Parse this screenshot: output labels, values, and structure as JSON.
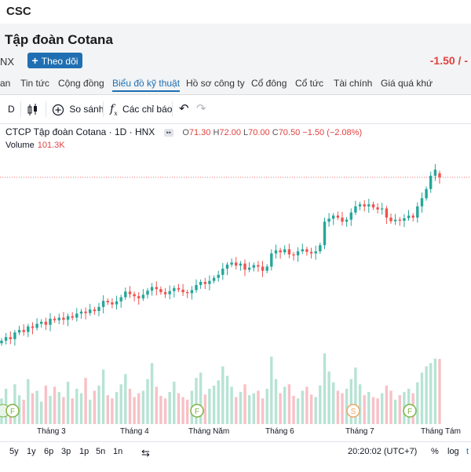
{
  "topbar": {
    "ticker": "CSC"
  },
  "header": {
    "company": "Tập đoàn Cotana",
    "exchange": "NX",
    "follow_label": "Theo dõi",
    "change": "-1.50 / -"
  },
  "tabs": [
    "an",
    "Tin tức",
    "Cộng đồng",
    "Biểu đồ kỹ thuật",
    "Hồ sơ công ty",
    "Cổ đông",
    "Cổ tức",
    "Tài chính",
    "Giá quá khứ"
  ],
  "toolbar": {
    "interval": "D",
    "compare_label": "So sánh",
    "indicators_label": "Các chỉ báo"
  },
  "legend": {
    "symbol": "CTCP Tập đoàn Cotana · 1D · HNX",
    "o_label": "O",
    "o": "71.30",
    "h_label": "H",
    "h": "72.00",
    "l_label": "L",
    "l": "70.00",
    "c_label": "C",
    "c": "70.50",
    "chg": "−1.50 (−2.08%)",
    "volume_label": "Volume",
    "volume": "101.3K"
  },
  "xaxis_labels": [
    "Tháng 3",
    "Tháng 4",
    "Tháng Năm",
    "Tháng 6",
    "Tháng 7",
    "Tháng Tám"
  ],
  "markers": [
    "F",
    "F",
    "S",
    "F"
  ],
  "bottombar": {
    "ranges": [
      "5y",
      "1y",
      "6p",
      "3p",
      "1p",
      "5n",
      "1n"
    ],
    "clock": "20:20:02 (UTC+7)",
    "percent": "%",
    "log": "log",
    "auto": "t"
  },
  "colors": {
    "up": "#26a69a",
    "down": "#ef5350",
    "vol_up": "#b7e3d4",
    "vol_down": "#f7c1c6",
    "accent": "#1f6fb2"
  },
  "chart_data": {
    "type": "candlestick",
    "close": [
      38.5,
      39.2,
      38.8,
      40.1,
      40.6,
      40.2,
      41.3,
      41.0,
      41.8,
      42.2,
      41.6,
      42.8,
      42.5,
      43.0,
      42.6,
      43.3,
      43.0,
      43.8,
      44.2,
      43.9,
      44.6,
      44.3,
      45.1,
      46.3,
      46.0,
      45.6,
      46.2,
      47.0,
      48.1,
      47.6,
      47.2,
      46.8,
      47.5,
      48.3,
      49.0,
      48.6,
      48.0,
      47.6,
      48.2,
      48.8,
      48.5,
      48.0,
      47.8,
      48.4,
      49.4,
      50.0,
      49.6,
      50.2,
      50.8,
      51.4,
      52.6,
      53.4,
      53.8,
      53.2,
      53.6,
      52.4,
      52.8,
      53.3,
      53.0,
      52.2,
      53.0,
      55.6,
      56.2,
      55.8,
      56.4,
      55.4,
      55.2,
      56.0,
      56.4,
      55.9,
      55.6,
      56.0,
      57.2,
      61.8,
      62.4,
      63.0,
      62.6,
      61.8,
      62.2,
      63.6,
      64.8,
      65.2,
      64.8,
      65.2,
      64.6,
      64.2,
      64.4,
      62.6,
      61.9,
      62.2,
      62.0,
      62.5,
      63.0,
      62.6,
      64.8,
      66.4,
      68.2,
      70.8,
      72.0,
      70.5
    ],
    "open": [
      38.0,
      38.5,
      39.2,
      38.8,
      40.1,
      40.6,
      40.2,
      41.3,
      41.0,
      41.8,
      42.2,
      41.6,
      42.8,
      42.5,
      43.0,
      42.6,
      43.3,
      43.0,
      43.8,
      44.2,
      43.9,
      44.6,
      44.3,
      45.1,
      46.3,
      46.0,
      45.6,
      46.2,
      47.0,
      48.1,
      47.6,
      47.2,
      46.8,
      47.5,
      48.3,
      49.0,
      48.6,
      48.0,
      47.6,
      48.2,
      48.8,
      48.5,
      48.0,
      47.8,
      48.4,
      49.4,
      50.0,
      49.6,
      50.2,
      50.8,
      51.4,
      52.6,
      53.4,
      53.8,
      53.2,
      53.6,
      52.4,
      52.8,
      53.3,
      53.0,
      52.2,
      53.0,
      55.6,
      56.2,
      55.8,
      56.4,
      55.4,
      55.2,
      56.0,
      56.4,
      55.9,
      55.6,
      56.0,
      57.2,
      61.8,
      62.4,
      63.0,
      62.6,
      61.8,
      62.2,
      63.6,
      64.8,
      65.2,
      64.8,
      65.2,
      64.6,
      64.2,
      64.4,
      62.6,
      61.9,
      62.2,
      62.0,
      62.5,
      63.0,
      62.6,
      64.8,
      66.4,
      68.2,
      70.8,
      71.3
    ],
    "volume": [
      40,
      55,
      30,
      62,
      45,
      38,
      70,
      48,
      52,
      35,
      60,
      44,
      58,
      50,
      42,
      66,
      40,
      55,
      48,
      72,
      38,
      52,
      60,
      85,
      45,
      40,
      50,
      62,
      78,
      55,
      42,
      48,
      52,
      70,
      95,
      58,
      44,
      40,
      50,
      66,
      48,
      42,
      38,
      52,
      72,
      80,
      46,
      55,
      60,
      68,
      90,
      75,
      58,
      42,
      50,
      62,
      45,
      48,
      52,
      40,
      55,
      105,
      70,
      48,
      58,
      62,
      44,
      40,
      52,
      58,
      46,
      42,
      60,
      110,
      82,
      65,
      52,
      48,
      55,
      70,
      88,
      62,
      45,
      50,
      42,
      40,
      48,
      60,
      52,
      38,
      45,
      50,
      55,
      48,
      65,
      80,
      90,
      95,
      102,
      101.3
    ],
    "price_range": [
      36,
      76
    ],
    "last_price": 70.5
  }
}
